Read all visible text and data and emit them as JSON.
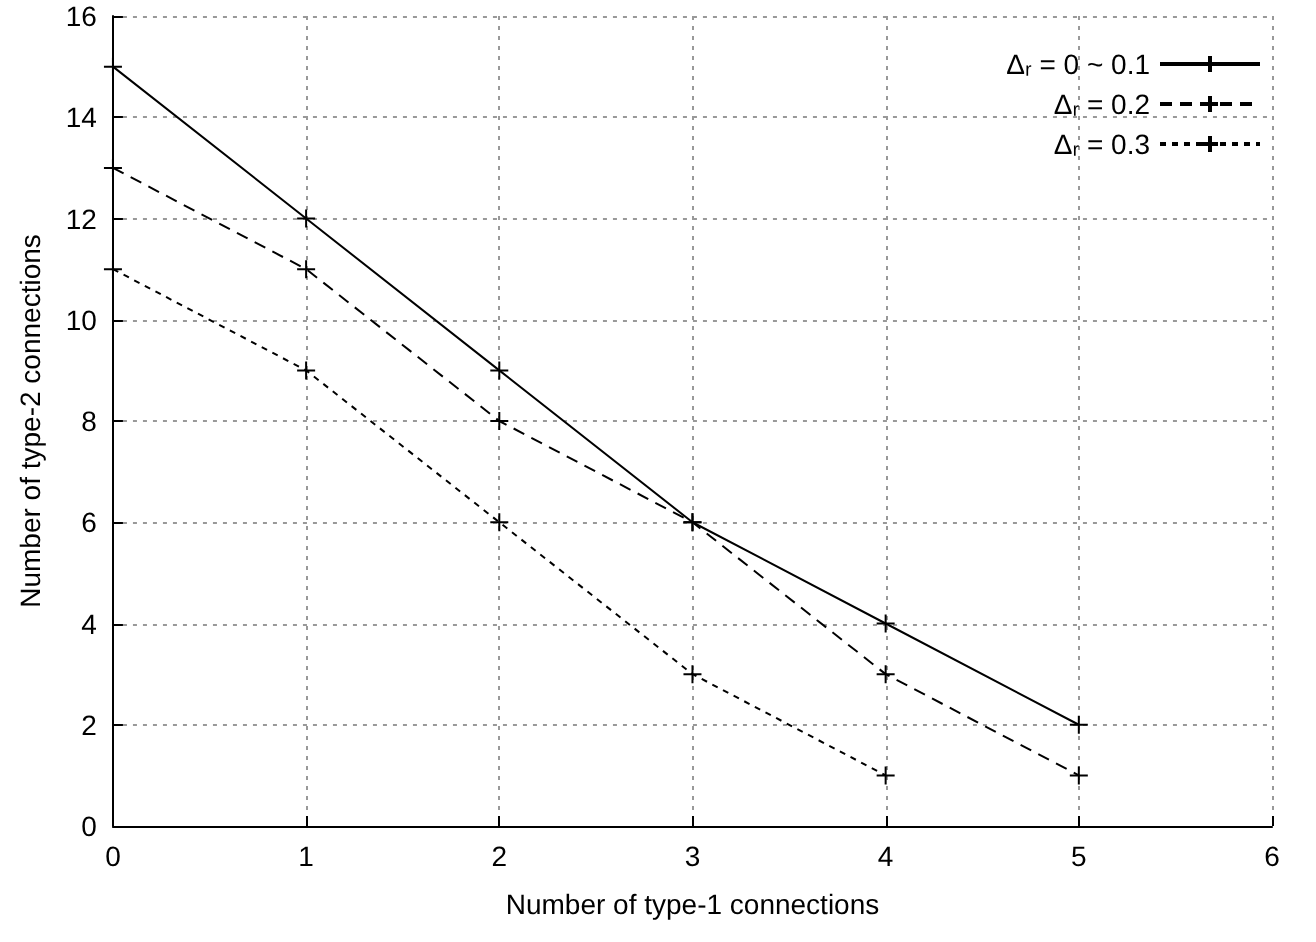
{
  "chart_data": {
    "type": "line",
    "xlabel": "Number of type-1 connections",
    "ylabel": "Number of type-2 connections",
    "x": [
      0,
      1,
      2,
      3,
      4,
      5
    ],
    "series": [
      {
        "name": "Δᵣ = 0 ~ 0.1",
        "color": "#000000",
        "line_style": "solid",
        "values": [
          15,
          12,
          9,
          6,
          4,
          2
        ]
      },
      {
        "name": "Δᵣ = 0.2",
        "color": "#000000",
        "line_style": "dashed",
        "values": [
          13,
          11,
          8,
          6,
          3,
          1
        ]
      },
      {
        "name": "Δᵣ = 0.3",
        "color": "#000000",
        "line_style": "dotted",
        "values": [
          11,
          9,
          6,
          3,
          1,
          null
        ]
      }
    ],
    "xlim": [
      0,
      6
    ],
    "xticks": [
      0,
      1,
      2,
      3,
      4,
      5,
      6
    ],
    "ylim": [
      0,
      16
    ],
    "yticks": [
      0,
      2,
      4,
      6,
      8,
      10,
      12,
      14,
      16
    ],
    "grid": true,
    "legend": "top right",
    "marker": "cross"
  }
}
